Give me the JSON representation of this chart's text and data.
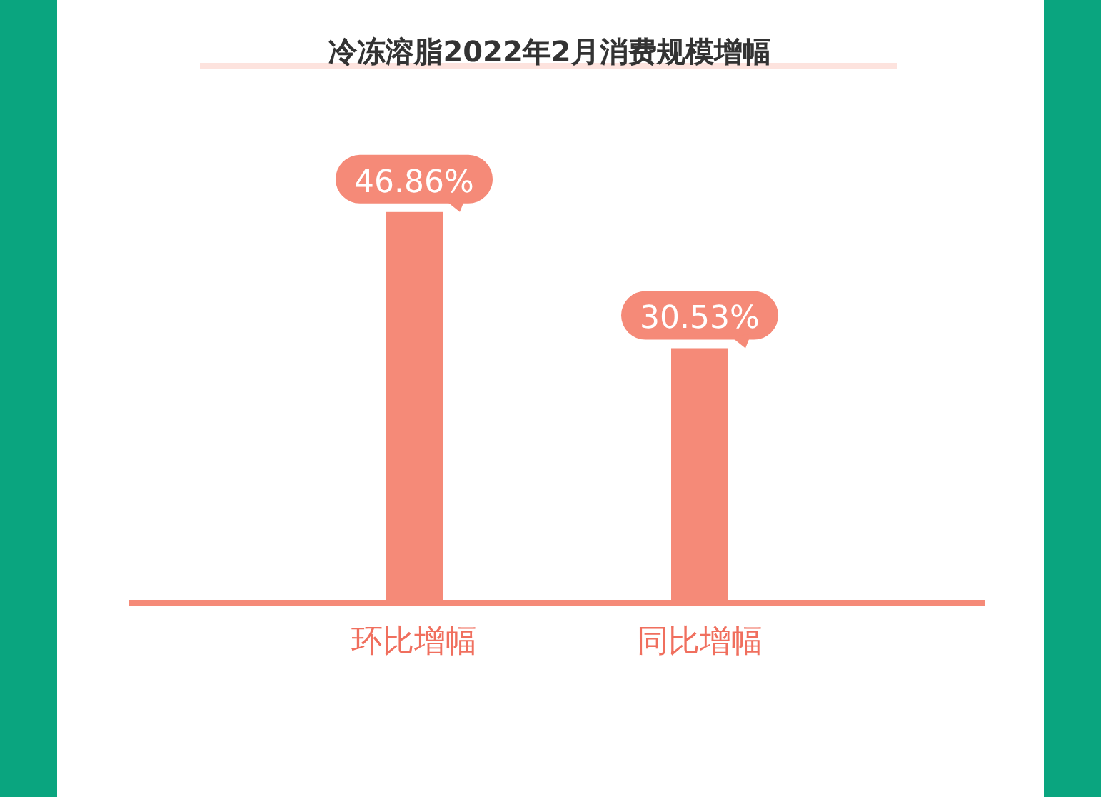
{
  "chart_data": {
    "type": "bar",
    "title": "冷冻溶脂2022年2月消费规模增幅",
    "categories": [
      "环比增幅",
      "同比增幅"
    ],
    "values": [
      46.86,
      30.53
    ],
    "value_labels": [
      "46.86%",
      "30.53%"
    ],
    "color": "#f58a78",
    "tick_labels": "x"
  }
}
